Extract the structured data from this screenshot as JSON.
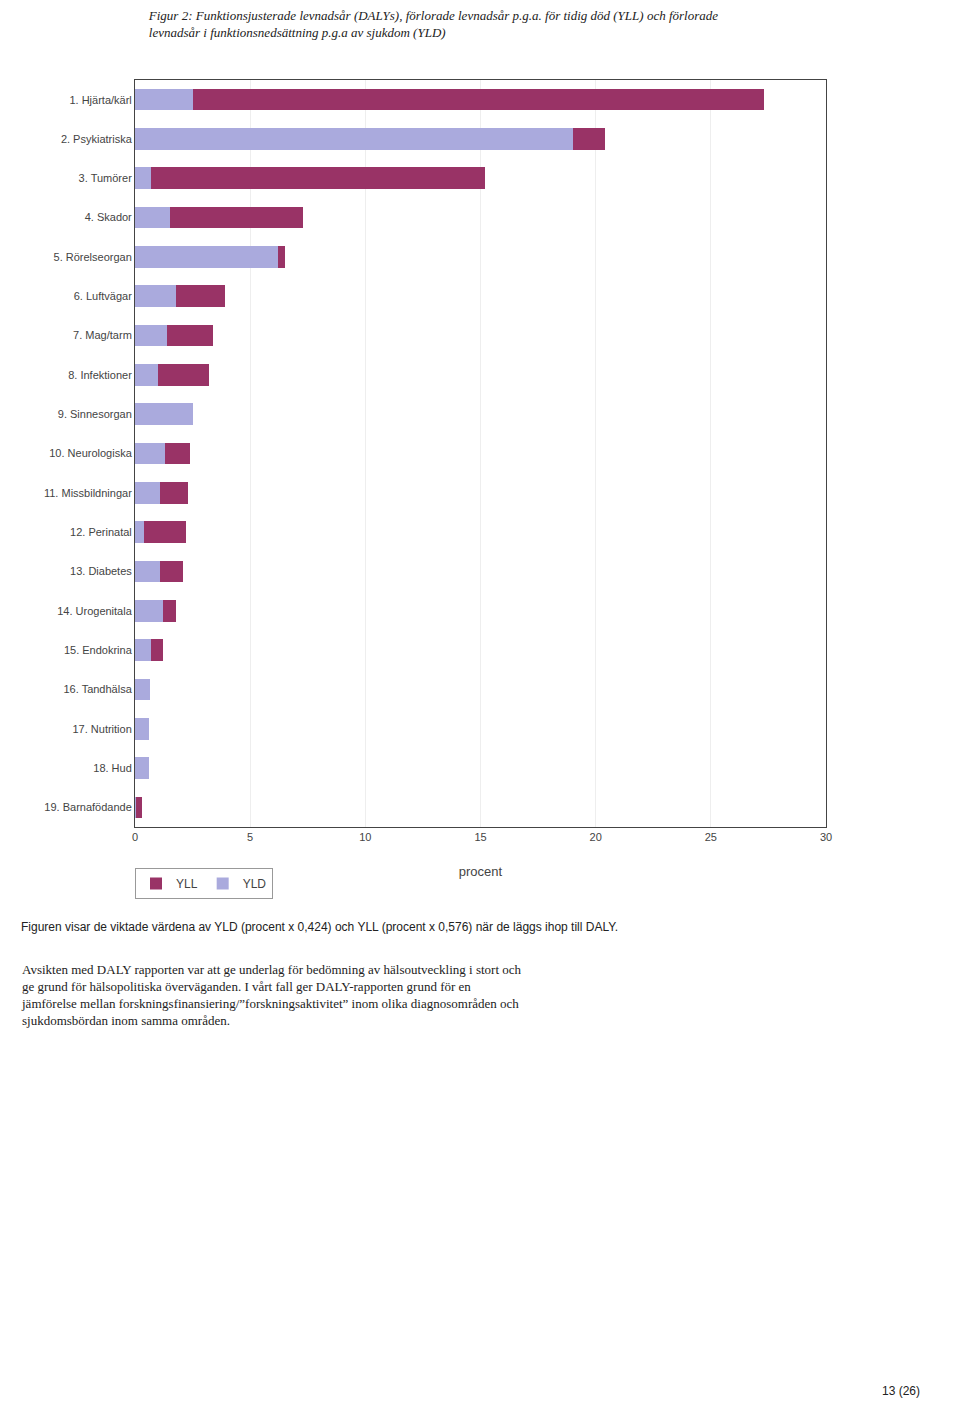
{
  "chart_data": {
    "type": "bar",
    "orientation": "horizontal",
    "stacked": true,
    "title": "Figur 2: Funktionsjusterade levnadsår (DALYs), förlorade levnadsår p.g.a. för tidig död (YLL) och förlorade\nlevnadsår i funktionsnedsättning p.g.a av sjukdom (YLD)",
    "categories": [
      "1. Hjärta/kärl",
      "2. Psykiatriska",
      "3. Tumörer",
      "4. Skador",
      "5. Rörelseorgan",
      "6. Luftvägar",
      "7. Mag/tarm",
      "8. Infektioner",
      "9. Sinnesorgan",
      "10. Neurologiska",
      "11. Missbildningar",
      "12. Perinatal",
      "13. Diabetes",
      "14. Urogenitala",
      "15. Endokrina",
      "16. Tandhälsa",
      "17. Nutrition",
      "18. Hud",
      "19. Barnafödande"
    ],
    "series": [
      {
        "name": "YLD",
        "color": "#aaaadd",
        "values": [
          2.5,
          19.0,
          0.7,
          1.5,
          6.2,
          1.8,
          1.4,
          1.0,
          2.5,
          1.3,
          1.1,
          0.4,
          1.1,
          1.2,
          0.7,
          0.65,
          0.6,
          0.6,
          0.05
        ]
      },
      {
        "name": "YLL",
        "color": "#993366",
        "values": [
          24.8,
          1.4,
          14.5,
          5.8,
          0.3,
          2.1,
          2.0,
          2.2,
          0.0,
          1.1,
          1.2,
          1.8,
          1.0,
          0.6,
          0.5,
          0.0,
          0.0,
          0.0,
          0.25
        ]
      }
    ],
    "xlabel": "procent",
    "xlim": [
      0,
      30
    ],
    "xticks": [
      0,
      5,
      10,
      15,
      20,
      25,
      30
    ],
    "grid": true,
    "legend": "lower left",
    "annotations": [
      "Figuren visar de viktade värdena av YLD (procent x 0,424) och YLL (procent x 0,576) när de läggs ihop till DALY.",
      "Avsikten med DALY rapporten var att ge underlag för bedömning av hälsoutveckling i stort och\nge grund för hälsopolitiska överväganden. I vårt fall ger DALY-rapporten grund för en\njämförelse mellan forskningsfinansiering/”forskningsaktivitet” inom olika diagnosområden och\nsjukdomsbördan inom samma områden.",
      "13 (26)"
    ]
  }
}
